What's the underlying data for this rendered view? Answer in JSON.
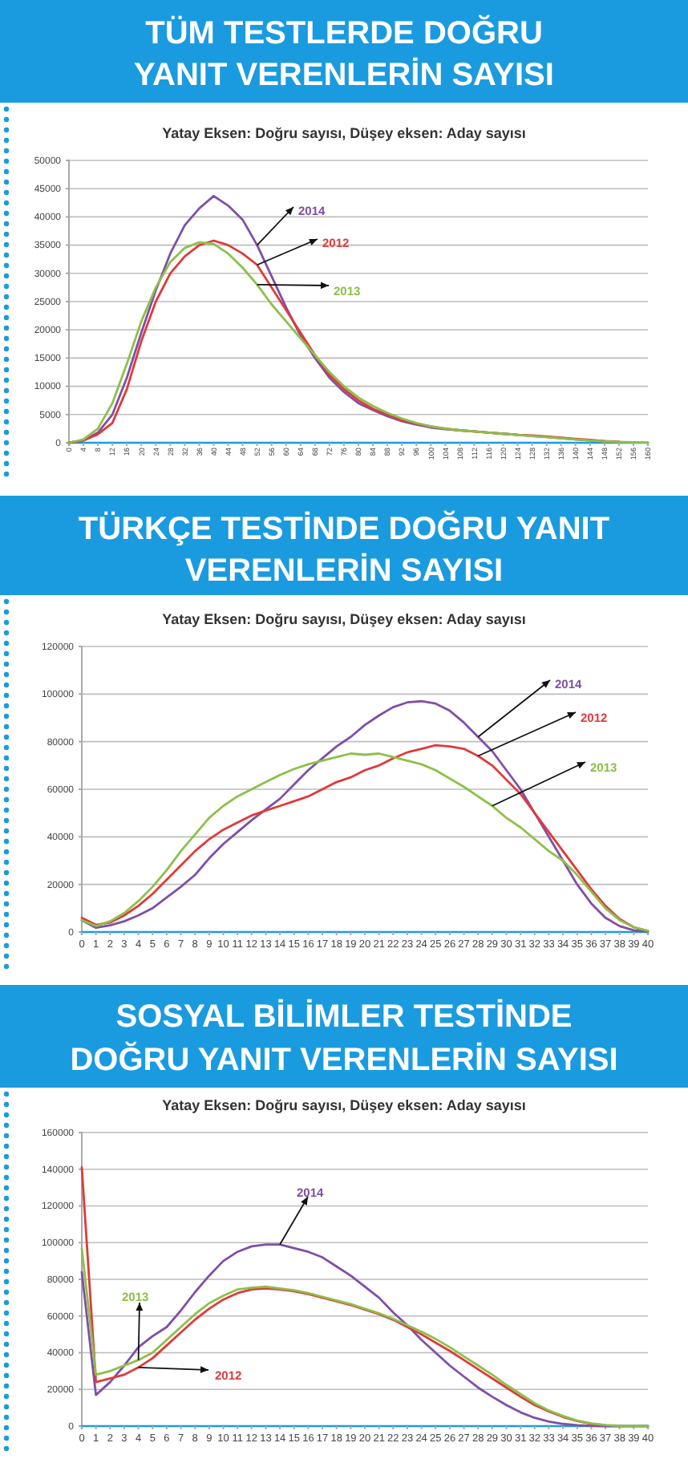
{
  "chart_data": [
    {
      "type": "line",
      "title": "TÜM TESTLERDE DOĞRU\nYANIT VERENLERİN SAYISI",
      "subtitle": "Yatay Eksen: Doğru sayısı, Düşey eksen: Aday sayısı",
      "x": [
        0,
        4,
        8,
        12,
        16,
        20,
        24,
        28,
        32,
        36,
        40,
        44,
        48,
        52,
        56,
        60,
        64,
        68,
        72,
        76,
        80,
        84,
        88,
        92,
        96,
        100,
        104,
        108,
        112,
        116,
        120,
        124,
        128,
        132,
        136,
        140,
        144,
        148,
        152,
        156,
        160
      ],
      "xlim": [
        0,
        160
      ],
      "xticks": [
        0,
        4,
        8,
        12,
        16,
        20,
        24,
        28,
        32,
        36,
        40,
        44,
        48,
        52,
        56,
        60,
        64,
        68,
        72,
        76,
        80,
        84,
        88,
        92,
        96,
        100,
        104,
        108,
        112,
        116,
        120,
        124,
        128,
        132,
        136,
        140,
        144,
        148,
        152,
        156,
        160
      ],
      "ylim": [
        0,
        50000
      ],
      "yticks": [
        0,
        5000,
        10000,
        15000,
        20000,
        25000,
        30000,
        35000,
        40000,
        45000,
        50000
      ],
      "grid": "y",
      "series": [
        {
          "name": "2014",
          "color": "#7f4fa6",
          "values": [
            0,
            400,
            1800,
            5000,
            11500,
            19500,
            27000,
            33500,
            38500,
            41500,
            43700,
            42000,
            39500,
            35000,
            29500,
            24000,
            19000,
            15000,
            11500,
            9000,
            7000,
            5800,
            4700,
            3800,
            3200,
            2700,
            2400,
            2200,
            2000,
            1800,
            1600,
            1400,
            1200,
            1000,
            800,
            600,
            400,
            250,
            null,
            null,
            null
          ]
        },
        {
          "name": "2012",
          "color": "#e03a3a",
          "values": [
            0,
            400,
            1500,
            3500,
            9500,
            18000,
            25000,
            30000,
            33000,
            35000,
            35800,
            35000,
            33500,
            31500,
            27500,
            23500,
            19500,
            15500,
            12000,
            9500,
            7500,
            6000,
            5000,
            4000,
            3400,
            2900,
            2500,
            2200,
            2000,
            1800,
            1600,
            1400,
            1300,
            1100,
            900,
            700,
            500,
            300,
            200,
            null,
            null
          ]
        },
        {
          "name": "2013",
          "color": "#8cc04a",
          "values": [
            0,
            600,
            2500,
            7000,
            14000,
            21500,
            27500,
            32000,
            34500,
            35500,
            35200,
            33500,
            31000,
            28000,
            24500,
            21500,
            18500,
            15500,
            12500,
            10000,
            8000,
            6500,
            5300,
            4300,
            3500,
            2900,
            2500,
            2200,
            2000,
            1800,
            1600,
            1400,
            1200,
            1000,
            800,
            600,
            400,
            250,
            150,
            80,
            50
          ]
        }
      ]
    },
    {
      "type": "line",
      "title": "TÜRKÇE TESTİNDE DOĞRU YANIT\nVERENLERİN SAYISI",
      "subtitle": "Yatay Eksen: Doğru sayısı, Düşey eksen: Aday sayısı",
      "x": [
        0,
        1,
        2,
        3,
        4,
        5,
        6,
        7,
        8,
        9,
        10,
        11,
        12,
        13,
        14,
        15,
        16,
        17,
        18,
        19,
        20,
        21,
        22,
        23,
        24,
        25,
        26,
        27,
        28,
        29,
        30,
        31,
        32,
        33,
        34,
        35,
        36,
        37,
        38,
        39,
        40
      ],
      "xlim": [
        0,
        40
      ],
      "xticks": [
        0,
        1,
        2,
        3,
        4,
        5,
        6,
        7,
        8,
        9,
        10,
        11,
        12,
        13,
        14,
        15,
        16,
        17,
        18,
        19,
        20,
        21,
        22,
        23,
        24,
        25,
        26,
        27,
        28,
        29,
        30,
        31,
        32,
        33,
        34,
        35,
        36,
        37,
        38,
        39,
        40
      ],
      "ylim": [
        0,
        120000
      ],
      "yticks": [
        0,
        20000,
        40000,
        60000,
        80000,
        100000,
        120000
      ],
      "grid": "y",
      "series": [
        {
          "name": "2014",
          "color": "#7f4fa6",
          "values": [
            5000,
            1800,
            2800,
            4500,
            7000,
            10000,
            14500,
            19000,
            24000,
            31000,
            37000,
            42000,
            47000,
            51500,
            56000,
            62000,
            68000,
            73000,
            78000,
            82000,
            87000,
            91000,
            94500,
            96500,
            97000,
            96000,
            93000,
            88000,
            82000,
            76000,
            68000,
            60000,
            50000,
            40000,
            30000,
            20000,
            12000,
            6000,
            2500,
            700,
            200
          ]
        },
        {
          "name": "2012",
          "color": "#e03a3a",
          "values": [
            6000,
            3000,
            4000,
            7000,
            11000,
            16000,
            22000,
            28000,
            34000,
            39000,
            43000,
            46000,
            49000,
            51000,
            53000,
            55000,
            57000,
            60000,
            63000,
            65000,
            68000,
            70000,
            73000,
            75500,
            77000,
            78500,
            78000,
            77000,
            74000,
            70000,
            64000,
            58000,
            50000,
            42000,
            34000,
            26000,
            18000,
            11000,
            5500,
            2000,
            500
          ]
        },
        {
          "name": "2013",
          "color": "#8cc04a",
          "values": [
            5000,
            2500,
            4500,
            8000,
            13000,
            19000,
            26000,
            34000,
            41000,
            48000,
            53000,
            57000,
            60000,
            63000,
            66000,
            68500,
            70500,
            72000,
            73500,
            75000,
            74500,
            75000,
            73500,
            72000,
            70500,
            68000,
            64500,
            61000,
            57000,
            53000,
            48000,
            44000,
            39000,
            34000,
            30000,
            24000,
            17000,
            10000,
            5000,
            2000,
            500
          ]
        }
      ]
    },
    {
      "type": "line",
      "title": "SOSYAL BİLİMLER TESTİNDE\nDOĞRU YANIT VERENLERİN SAYISI",
      "subtitle": "Yatay Eksen: Doğru sayısı, Düşey eksen: Aday sayısı",
      "x": [
        0,
        1,
        2,
        3,
        4,
        5,
        6,
        7,
        8,
        9,
        10,
        11,
        12,
        13,
        14,
        15,
        16,
        17,
        18,
        19,
        20,
        21,
        22,
        23,
        24,
        25,
        26,
        27,
        28,
        29,
        30,
        31,
        32,
        33,
        34,
        35,
        36,
        37,
        38,
        39,
        40
      ],
      "xlim": [
        0,
        40
      ],
      "xticks": [
        0,
        1,
        2,
        3,
        4,
        5,
        6,
        7,
        8,
        9,
        10,
        11,
        12,
        13,
        14,
        15,
        16,
        17,
        18,
        19,
        20,
        21,
        22,
        23,
        24,
        25,
        26,
        27,
        28,
        29,
        30,
        31,
        32,
        33,
        34,
        35,
        36,
        37,
        38,
        39,
        40
      ],
      "ylim": [
        0,
        160000
      ],
      "yticks": [
        0,
        20000,
        40000,
        60000,
        80000,
        100000,
        120000,
        140000,
        160000
      ],
      "grid": "y",
      "series": [
        {
          "name": "2014",
          "color": "#7f4fa6",
          "values": [
            84000,
            17000,
            24000,
            33000,
            43000,
            49000,
            54000,
            63000,
            73000,
            82000,
            90000,
            95000,
            98000,
            99000,
            99000,
            97000,
            95000,
            92000,
            87000,
            82000,
            76000,
            70000,
            62000,
            55000,
            47000,
            40000,
            33000,
            27000,
            21000,
            16000,
            11500,
            7500,
            4500,
            2500,
            1200,
            500,
            200,
            0,
            0,
            0,
            0
          ]
        },
        {
          "name": "2012",
          "color": "#e03a3a",
          "values": [
            141000,
            24000,
            26000,
            28000,
            32000,
            37000,
            44000,
            51000,
            58000,
            64000,
            69000,
            72500,
            74500,
            75000,
            74500,
            73500,
            72000,
            70000,
            68000,
            66000,
            63500,
            61000,
            58000,
            54000,
            50000,
            45500,
            41000,
            36000,
            31000,
            26000,
            21000,
            16000,
            11500,
            8000,
            5000,
            2800,
            1300,
            500,
            null,
            null,
            null
          ]
        },
        {
          "name": "2013",
          "color": "#8cc04a",
          "values": [
            97000,
            28000,
            30000,
            33000,
            36000,
            40000,
            47000,
            54000,
            61000,
            67000,
            71000,
            74500,
            75500,
            76000,
            75000,
            74000,
            72500,
            70500,
            68500,
            66500,
            64000,
            61500,
            58500,
            55000,
            51500,
            47500,
            43000,
            38000,
            33000,
            28000,
            22500,
            17500,
            12500,
            8500,
            5500,
            3000,
            1500,
            600,
            200,
            0,
            0
          ]
        }
      ]
    }
  ]
}
